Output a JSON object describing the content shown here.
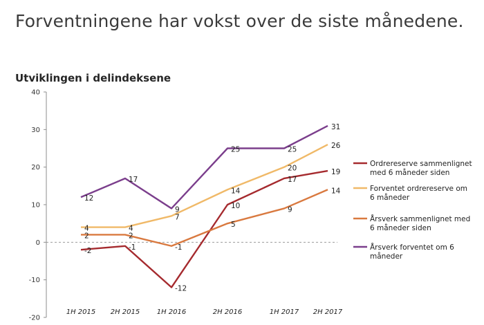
{
  "headline": "Forventningene har vokst over de siste månedene.",
  "chart_data": {
    "type": "line",
    "title": "Utviklingen i delindeksene",
    "categories": [
      "1H 2015",
      "2H 2015",
      "1H 2016",
      "2H 2016",
      "1H 2017",
      "2H 2017"
    ],
    "ylim": [
      -20,
      40
    ],
    "yticks": [
      -20,
      -10,
      0,
      10,
      20,
      30,
      40
    ],
    "grid": false,
    "legend_position": "right",
    "series": [
      {
        "name": "Ordrereserve sammenlignet med 6 måneder siden",
        "color": "#a52a2e",
        "values": [
          -2,
          -1,
          -12,
          10,
          17,
          19
        ]
      },
      {
        "name": "Forventet ordrereserve om 6 måneder",
        "color": "#f0b968",
        "values": [
          4,
          4,
          7,
          14,
          20,
          26
        ]
      },
      {
        "name": "Årsverk  sammenlignet med 6 måneder siden",
        "color": "#d9793f",
        "values": [
          2,
          2,
          -1,
          5,
          9,
          14
        ]
      },
      {
        "name": "Årsverk  forventet om 6 måneder",
        "color": "#7b3e8c",
        "values": [
          12,
          17,
          9,
          25,
          25,
          31
        ]
      }
    ],
    "legend_lines": [
      [
        "Ordrereserve sammenlignet",
        "med 6 måneder siden"
      ],
      [
        "Forventet ordrereserve om",
        "6 måneder"
      ],
      [
        "Årsverk  sammenlignet med",
        "6 måneder siden"
      ],
      [
        "Årsverk  forventet om 6",
        "måneder"
      ]
    ]
  }
}
